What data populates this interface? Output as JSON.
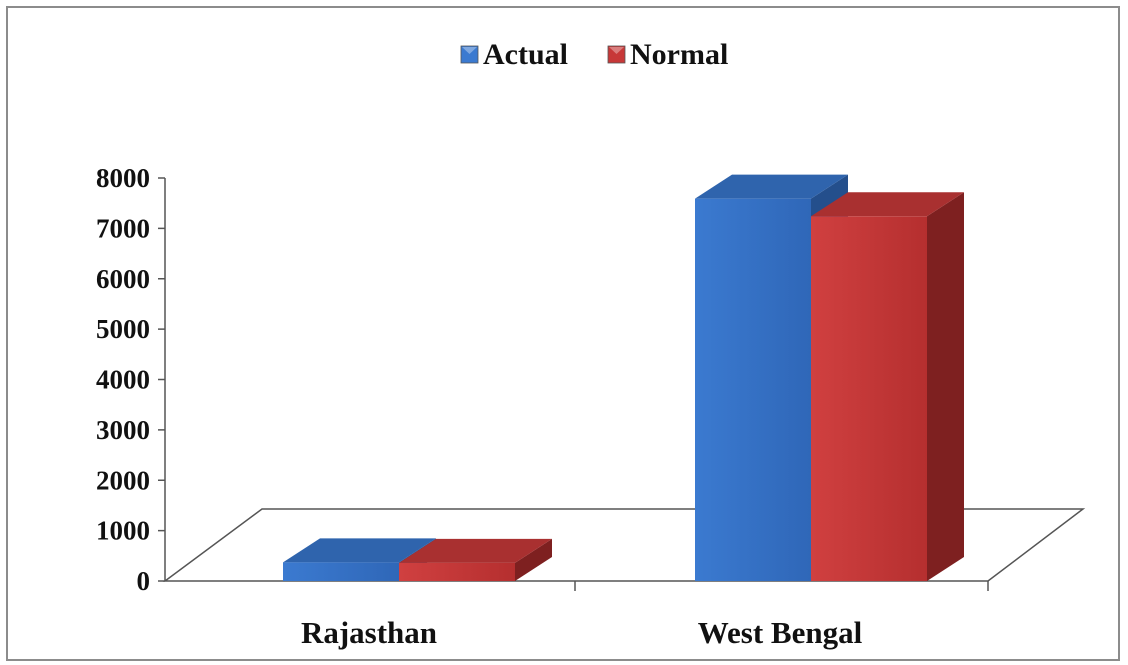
{
  "chart_data": {
    "type": "bar",
    "categories": [
      "Rajasthan",
      "West Bengal"
    ],
    "series": [
      {
        "name": "Actual",
        "values": [
          370,
          7590
        ],
        "color": "#3b7ad0"
      },
      {
        "name": "Normal",
        "values": [
          360,
          7240
        ],
        "color": "#c73838"
      }
    ],
    "title": "",
    "xlabel": "",
    "ylabel": "",
    "ylim": [
      0,
      8000
    ],
    "yticks": [
      0,
      1000,
      2000,
      3000,
      4000,
      5000,
      6000,
      7000,
      8000
    ],
    "legend_position": "top",
    "grid": false,
    "style": "3d-clustered-column"
  }
}
